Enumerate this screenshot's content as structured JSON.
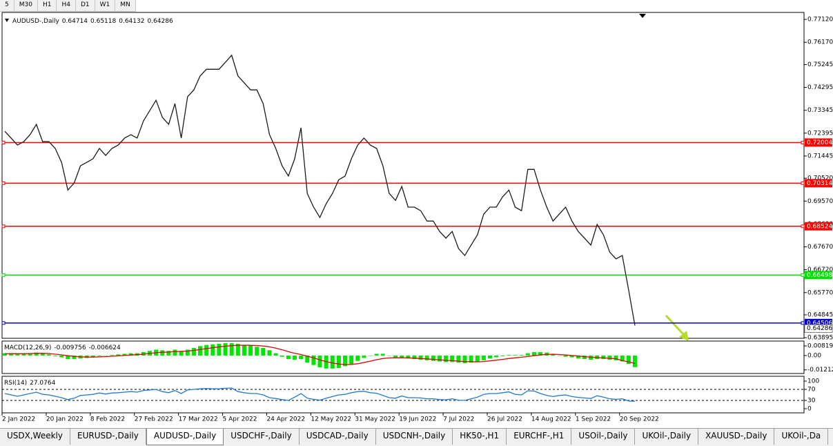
{
  "toolbar": {
    "timeframes": [
      "5",
      "M30",
      "H1",
      "H4",
      "D1",
      "W1",
      "MN"
    ]
  },
  "chart_data": [
    {
      "type": "line",
      "title": "AUDUSD-,Daily",
      "header_values": [
        0.64714,
        0.65118,
        0.64132,
        0.64286
      ],
      "color": "#1a1a1a",
      "categories": [
        "2 Jan 2022",
        null,
        null,
        null,
        null,
        null,
        null,
        "20 Jan 2022",
        null,
        null,
        null,
        null,
        null,
        null,
        "8 Feb 2022",
        null,
        null,
        null,
        null,
        null,
        null,
        "27 Feb 2022",
        null,
        null,
        null,
        null,
        null,
        null,
        "17 Mar 2022",
        null,
        null,
        null,
        null,
        null,
        null,
        "5 Apr 2022",
        null,
        null,
        null,
        null,
        null,
        null,
        "24 Apr 2022",
        null,
        null,
        null,
        null,
        null,
        null,
        "12 May 2022",
        null,
        null,
        null,
        null,
        null,
        null,
        "31 May 2022",
        null,
        null,
        null,
        null,
        null,
        null,
        "19 Jun 2022",
        null,
        null,
        null,
        null,
        null,
        null,
        "7 Jul 2022",
        null,
        null,
        null,
        null,
        null,
        null,
        "26 Jul 2022",
        null,
        null,
        null,
        null,
        null,
        null,
        "14 Aug 2022",
        null,
        null,
        null,
        null,
        null,
        null,
        "1 Sep 2022",
        null,
        null,
        null,
        null,
        null,
        null,
        "20 Sep 2022",
        null,
        null
      ],
      "values": [
        0.7247,
        0.7219,
        0.719,
        0.7204,
        0.7233,
        0.7276,
        0.7204,
        0.7204,
        0.7176,
        0.7118,
        0.7003,
        0.7032,
        0.7104,
        0.7118,
        0.7133,
        0.7176,
        0.7147,
        0.7176,
        0.719,
        0.7219,
        0.7233,
        0.7219,
        0.729,
        0.7333,
        0.7376,
        0.7305,
        0.7276,
        0.7362,
        0.7219,
        0.7391,
        0.7419,
        0.7477,
        0.7505,
        0.7505,
        0.7505,
        0.7534,
        0.7563,
        0.7477,
        0.7448,
        0.7419,
        0.7419,
        0.7362,
        0.7233,
        0.7176,
        0.7104,
        0.7061,
        0.7133,
        0.7262,
        0.6989,
        0.6932,
        0.6889,
        0.6946,
        0.6989,
        0.7046,
        0.7061,
        0.7133,
        0.719,
        0.7219,
        0.719,
        0.7176,
        0.7104,
        0.6989,
        0.696,
        0.7018,
        0.6932,
        0.6932,
        0.6917,
        0.6874,
        0.6874,
        0.6831,
        0.6803,
        0.6831,
        0.676,
        0.6731,
        0.6774,
        0.6817,
        0.6903,
        0.6932,
        0.6932,
        0.6975,
        0.7003,
        0.6932,
        0.6917,
        0.7089,
        0.7089,
        0.7003,
        0.6932,
        0.6874,
        0.6903,
        0.6932,
        0.6874,
        0.6831,
        0.6803,
        0.6774,
        0.686,
        0.6817,
        0.6745,
        0.6717,
        0.6731,
        0.6587,
        0.644
      ],
      "ylim": [
        0.6387,
        0.7741
      ],
      "yticks": [
        {
          "value": 0.7712,
          "label": "0.77120"
        },
        {
          "value": 0.7617,
          "label": "0.76170"
        },
        0.75245,
        0.74295,
        0.73345,
        0.72395,
        0.71445,
        {
          "value": 0.7052,
          "label": "0.70520"
        },
        {
          "value": 0.6957,
          "label": "0.69570"
        },
        {
          "value": 0.6862,
          "label": "0.68620"
        },
        {
          "value": 0.6767,
          "label": "0.67670"
        },
        {
          "value": 0.6672,
          "label": "0.66720"
        },
        {
          "value": 0.6577,
          "label": "0.65770"
        },
        0.64845,
        0.63895
      ],
      "levels": [
        {
          "value": 0.72004,
          "color": "#ff0000"
        },
        {
          "value": 0.70314,
          "color": "#ff0000"
        },
        {
          "value": 0.68524,
          "color": "#ff0000"
        },
        {
          "value": 0.66498,
          "color": "#00e000"
        },
        {
          "value": 0.64506,
          "color": "#0000c8"
        }
      ],
      "last": 0.64286
    },
    {
      "type": "macd",
      "title": "MACD(12,26,9)",
      "header_values": [
        -0.009756,
        -0.006624
      ],
      "histogram": {
        "color": "#00e600",
        "values": [
          0.002,
          0.002,
          0.0015,
          0.0015,
          0.002,
          0.0025,
          0.002,
          0.001,
          -0.0005,
          -0.0015,
          -0.003,
          -0.003,
          -0.0025,
          -0.002,
          -0.001,
          -0.0005,
          0,
          0.0005,
          0.001,
          0.0015,
          0.002,
          0.002,
          0.003,
          0.004,
          0.005,
          0.0045,
          0.004,
          0.005,
          0.004,
          0.005,
          0.0065,
          0.008,
          0.009,
          0.0095,
          0.01,
          0.0105,
          0.0105,
          0.01,
          0.009,
          0.0085,
          0.0075,
          0.0065,
          0.0045,
          0.002,
          -0.001,
          -0.003,
          -0.0035,
          -0.003,
          -0.006,
          -0.008,
          -0.01,
          -0.011,
          -0.011,
          -0.0105,
          -0.009,
          -0.007,
          -0.0045,
          -0.002,
          0,
          0.0015,
          0.0015,
          0,
          -0.0015,
          -0.0015,
          -0.0025,
          -0.003,
          -0.0035,
          -0.004,
          -0.0045,
          -0.005,
          -0.0055,
          -0.0055,
          -0.006,
          -0.0065,
          -0.006,
          -0.0055,
          -0.004,
          -0.0025,
          -0.0015,
          -0.0005,
          0.0005,
          0.0005,
          0.0005,
          0.002,
          0.003,
          0.003,
          0.0025,
          0.0015,
          0,
          -0.001,
          -0.0015,
          -0.0025,
          -0.003,
          -0.0035,
          -0.003,
          -0.003,
          -0.0035,
          -0.004,
          -0.005,
          -0.007,
          -0.0098
        ]
      },
      "signal": {
        "color": "#e00000",
        "values": [
          0.0015,
          0.0016,
          0.0016,
          0.0016,
          0.0017,
          0.0019,
          0.0019,
          0.0017,
          0.0012,
          0.0006,
          -0.0001,
          -0.0007,
          -0.0011,
          -0.0013,
          -0.0013,
          -0.0011,
          -0.0009,
          -0.0006,
          -0.0003,
          0.0001,
          0.0005,
          0.0008,
          0.0012,
          0.0018,
          0.0024,
          0.0028,
          0.003,
          0.0034,
          0.0035,
          0.0038,
          0.0044,
          0.0051,
          0.0059,
          0.0066,
          0.0073,
          0.0079,
          0.0084,
          0.0087,
          0.0088,
          0.0087,
          0.0085,
          0.0081,
          0.0074,
          0.0063,
          0.0049,
          0.0033,
          0.0019,
          0.0009,
          -0.0005,
          -0.002,
          -0.0036,
          -0.0051,
          -0.0063,
          -0.0072,
          -0.0076,
          -0.0075,
          -0.0069,
          -0.0059,
          -0.0047,
          -0.0035,
          -0.0025,
          -0.002,
          -0.0019,
          -0.0018,
          -0.002,
          -0.0022,
          -0.0025,
          -0.0028,
          -0.0032,
          -0.0036,
          -0.004,
          -0.0043,
          -0.0047,
          -0.005,
          -0.0052,
          -0.0053,
          -0.005,
          -0.0045,
          -0.0039,
          -0.0032,
          -0.0025,
          -0.0019,
          -0.0014,
          -0.0008,
          -0.0001,
          0.0006,
          0.001,
          0.0011,
          0.0009,
          0.0005,
          0.0001,
          -0.0004,
          -0.0009,
          -0.0014,
          -0.0017,
          -0.002,
          -0.0023,
          -0.0027,
          -0.0042,
          -0.0054,
          -0.0066
        ]
      },
      "ylim": [
        -0.0152,
        0.0123
      ],
      "yticks": [
        0.008197,
        {
          "value": 0,
          "label": "0.00"
        },
        -0.012122
      ]
    },
    {
      "type": "line",
      "title": "RSI(14)",
      "header_values": [
        27.0764
      ],
      "color": "#1e78d2",
      "values": [
        55,
        50,
        45,
        50,
        55,
        60,
        52,
        50,
        45,
        40,
        33,
        38,
        48,
        50,
        52,
        57,
        53,
        57,
        58,
        60,
        62,
        60,
        66,
        68,
        70,
        62,
        58,
        66,
        55,
        68,
        70,
        72,
        73,
        72,
        72,
        74,
        75,
        62,
        58,
        55,
        55,
        50,
        40,
        37,
        33,
        30,
        42,
        55,
        38,
        34,
        31,
        38,
        44,
        50,
        52,
        58,
        62,
        63,
        58,
        56,
        48,
        40,
        38,
        46,
        40,
        40,
        39,
        36,
        36,
        33,
        32,
        36,
        31,
        30,
        36,
        42,
        52,
        55,
        55,
        58,
        61,
        52,
        50,
        65,
        64,
        55,
        48,
        44,
        48,
        50,
        44,
        41,
        39,
        37,
        47,
        42,
        36,
        34,
        36,
        28,
        27.08
      ],
      "ylim": [
        -15,
        117.5
      ],
      "yticks": [
        100,
        70,
        30,
        0
      ],
      "levels": [
        70,
        30
      ]
    }
  ],
  "tabs": [
    {
      "label": "USDX,Weekly"
    },
    {
      "label": "EURUSD-,Daily"
    },
    {
      "label": "AUDUSD-,Daily",
      "active": true
    },
    {
      "label": "USDCHF-,Daily"
    },
    {
      "label": "USDCAD-,Daily"
    },
    {
      "label": "USDCNH-,Daily"
    },
    {
      "label": "HK50-,H1"
    },
    {
      "label": "EURCHF-,H1"
    },
    {
      "label": "USOil-,Daily"
    },
    {
      "label": "UKOil-,Daily"
    },
    {
      "label": "XAUUSD-,Daily"
    },
    {
      "label": "UKOil-,Da"
    }
  ]
}
